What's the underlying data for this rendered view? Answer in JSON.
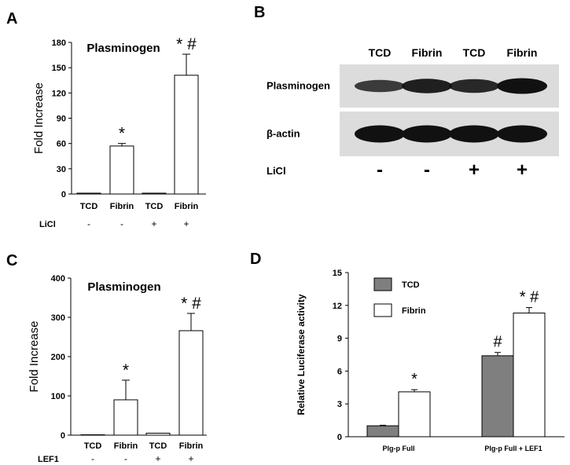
{
  "chart_data": [
    {
      "panel": "A",
      "type": "bar",
      "title": "Plasminogen",
      "ylabel": "Fold Increase",
      "ylim": [
        0,
        180
      ],
      "yticks": [
        0,
        30,
        60,
        90,
        120,
        150,
        180
      ],
      "categories": [
        "TCD",
        "Fibrin",
        "TCD",
        "Fibrin"
      ],
      "values": [
        1,
        57,
        1,
        141
      ],
      "errors": [
        0,
        3,
        0,
        25
      ],
      "annotations": [
        "",
        "*",
        "",
        "* #"
      ],
      "treatment_label": "LiCl",
      "treatment": [
        "-",
        "-",
        "+",
        "+"
      ]
    },
    {
      "panel": "B",
      "type": "blot",
      "lanes": [
        "TCD",
        "Fibrin",
        "TCD",
        "Fibrin"
      ],
      "rows": [
        {
          "label": "Plasminogen",
          "intensity": [
            0.55,
            0.85,
            0.75,
            1.0
          ]
        },
        {
          "label": "β-actin",
          "intensity": [
            1.0,
            1.0,
            1.0,
            1.0
          ]
        }
      ],
      "treatment_label": "LiCl",
      "treatment": [
        "-",
        "-",
        "+",
        "+"
      ]
    },
    {
      "panel": "C",
      "type": "bar",
      "title": "Plasminogen",
      "ylabel": "Fold Increase",
      "ylim": [
        0,
        400
      ],
      "yticks": [
        0,
        100,
        200,
        300,
        400
      ],
      "categories": [
        "TCD",
        "Fibrin",
        "TCD",
        "Fibrin"
      ],
      "values": [
        1,
        90,
        5,
        266
      ],
      "errors": [
        0,
        50,
        0,
        44
      ],
      "annotations": [
        "",
        "*",
        "",
        "* #"
      ],
      "treatment_label": "LEF1",
      "treatment": [
        "-",
        "-",
        "+",
        "+"
      ]
    },
    {
      "panel": "D",
      "type": "bar",
      "ylabel": "Relative Luciferase activity",
      "ylim": [
        0,
        15
      ],
      "yticks": [
        0,
        3,
        6,
        9,
        12,
        15
      ],
      "categories": [
        "Plg-p Full",
        "Plg-p Full + LEF1"
      ],
      "series": [
        {
          "name": "TCD",
          "values": [
            1.0,
            7.4
          ],
          "errors": [
            0.05,
            0.3
          ],
          "annotations": [
            "",
            "#"
          ]
        },
        {
          "name": "Fibrin",
          "values": [
            4.1,
            11.3
          ],
          "errors": [
            0.2,
            0.5
          ],
          "annotations": [
            "*",
            "* #"
          ]
        }
      ],
      "series_colors": [
        "#7f7f7f",
        "#ffffff"
      ]
    }
  ],
  "panel_labels": [
    "A",
    "B",
    "C",
    "D"
  ]
}
